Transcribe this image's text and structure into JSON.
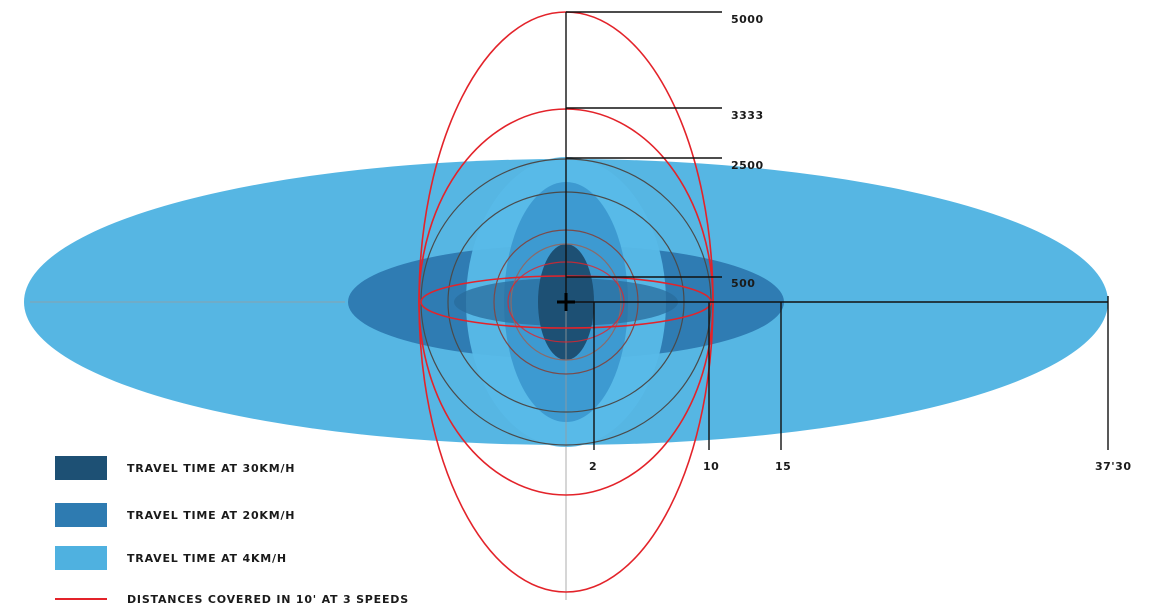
{
  "colors": {
    "speed_30": "#1d5074",
    "speed_20": "#2e7bb1",
    "speed_4": "#4fb1e0",
    "distance_line": "#e3232a"
  },
  "distance_labels": [
    "5000",
    "3333",
    "2500",
    "500"
  ],
  "time_labels": [
    "2",
    "10",
    "15",
    "37'30"
  ],
  "legend": [
    {
      "label": "TRAVEL TIME AT 30KM/H",
      "kind": "swatch",
      "color": "#1d5074"
    },
    {
      "label": "TRAVEL TIME AT 20KM/H",
      "kind": "swatch",
      "color": "#2e7bb1"
    },
    {
      "label": "TRAVEL TIME AT 4KM/H",
      "kind": "swatch",
      "color": "#4fb1e0"
    },
    {
      "label": "DISTANCES COVERED IN 10' AT 3 SPEEDS",
      "kind": "line",
      "color": "#e3232a"
    }
  ],
  "center_marker": "crosshair-icon"
}
